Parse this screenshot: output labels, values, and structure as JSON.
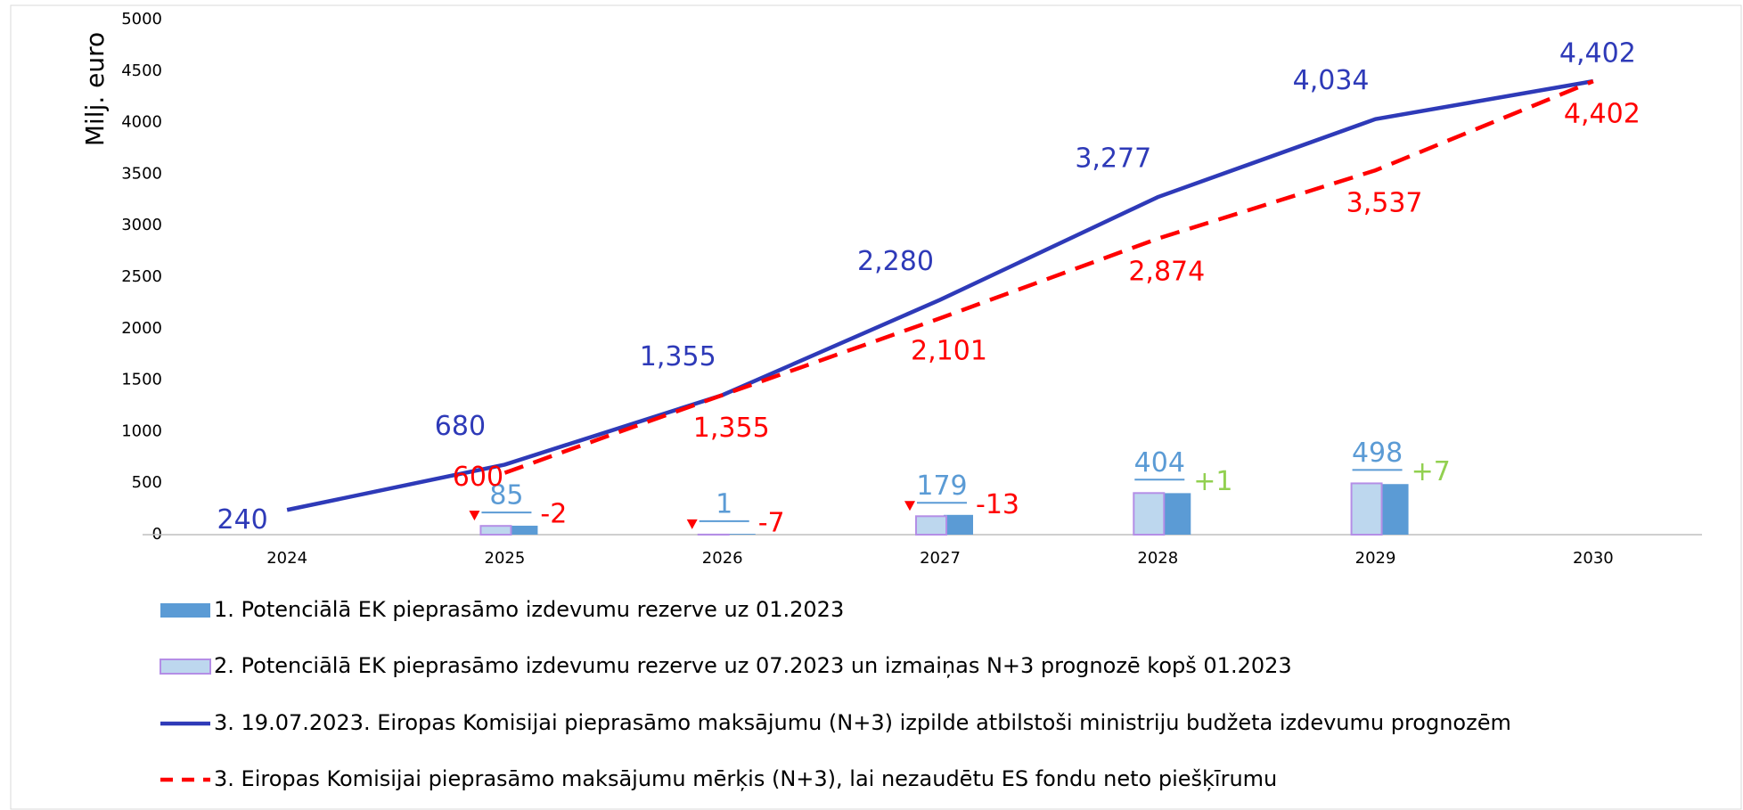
{
  "chart_data": {
    "type": "combo",
    "ylabel": "Milj. euro",
    "categories": [
      "2024",
      "2025",
      "2026",
      "2027",
      "2028",
      "2029",
      "2030"
    ],
    "ylim": [
      0,
      5000
    ],
    "yticks": [
      0,
      500,
      1000,
      1500,
      2000,
      2500,
      3000,
      3500,
      4000,
      4500,
      5000
    ],
    "series": [
      {
        "name": "1. Potenciālā EK pieprasāmo izdevumu rezerve uz 01.2023",
        "type": "bar",
        "color": "#5b9bd5",
        "values": [
          null,
          87,
          8,
          192,
          403,
          491,
          null
        ]
      },
      {
        "name": "2. Potenciālā EK pieprasāmo izdevumu rezerve uz 07.2023 un izmaiņas N+3 prognozē kopš 01.2023",
        "type": "bar",
        "color": "#bdd7ee",
        "border": "#b48ee6",
        "label_color": "#5b9bd5",
        "values": [
          null,
          85,
          1,
          179,
          404,
          498,
          null
        ],
        "changes": [
          null,
          "-2",
          "-7",
          "-13",
          "+1",
          "+7",
          null
        ],
        "change_colors": [
          null,
          "#ff0000",
          "#ff0000",
          "#ff0000",
          "#92d050",
          "#92d050",
          null
        ]
      },
      {
        "name": "3. 19.07.2023. Eiropas Komisijai pieprasāmo maksājumu (N+3) izpilde atbilstoši ministriju budžeta izdevumu prognozēm",
        "type": "line",
        "color": "#2e3ab8",
        "values": [
          240,
          680,
          1355,
          2280,
          3277,
          4034,
          4402
        ],
        "value_labels": [
          "240",
          "680",
          "1,355",
          "2,280",
          "3,277",
          "4,034",
          "4,402"
        ]
      },
      {
        "name": "3. Eiropas Komisijai pieprasāmo maksājumu mērķis (N+3), lai nezaudētu ES fondu neto piešķīrumu",
        "type": "line",
        "dashed": true,
        "color": "#ff0000",
        "values": [
          null,
          600,
          1355,
          2101,
          2874,
          3537,
          4402
        ],
        "value_labels": [
          null,
          "600",
          "1,355",
          "2,101",
          "2,874",
          "3,537",
          "4,402"
        ]
      }
    ]
  }
}
